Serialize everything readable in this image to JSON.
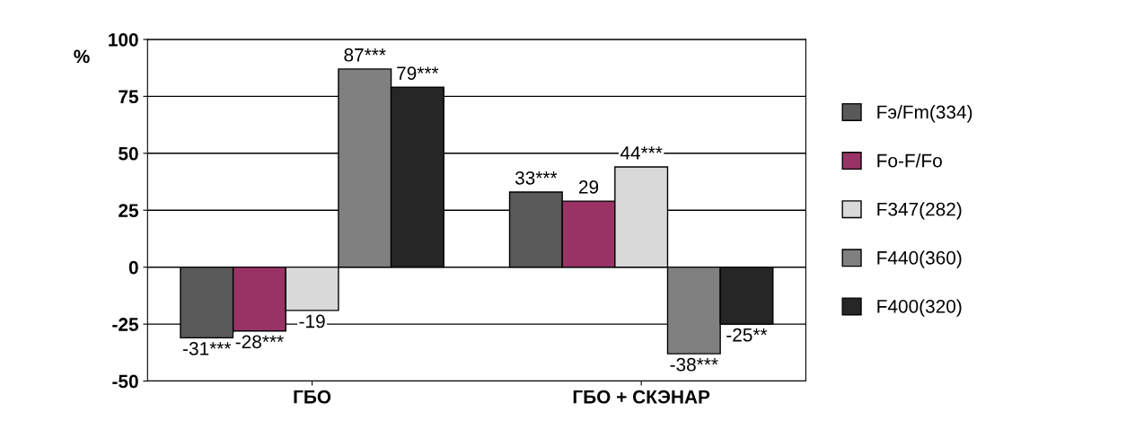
{
  "chart_data": {
    "type": "bar",
    "ylabel": "%",
    "categories": [
      "ГБО",
      "ГБО + СКЭНАР"
    ],
    "series": [
      {
        "name": "Fэ/Fm(334)",
        "color": "#595959",
        "values": [
          -31,
          33
        ],
        "value_labels": [
          "-31***",
          "33***"
        ]
      },
      {
        "name": "Fo-F/Fo",
        "color": "#993366",
        "values": [
          -28,
          29
        ],
        "value_labels": [
          "-28***",
          "29"
        ]
      },
      {
        "name": "F347(282)",
        "color": "#d9d9d9",
        "values": [
          -19,
          44
        ],
        "value_labels": [
          "-19",
          "44***"
        ]
      },
      {
        "name": "F440(360)",
        "color": "#808080",
        "values": [
          87,
          -38
        ],
        "value_labels": [
          "87***",
          "-38***"
        ]
      },
      {
        "name": "F400(320)",
        "color": "#262626",
        "values": [
          79,
          -25
        ],
        "value_labels": [
          "79***",
          "-25**"
        ]
      }
    ],
    "ylim": [
      -50,
      100
    ],
    "yticks": [
      -50,
      -25,
      0,
      25,
      50,
      75,
      100
    ],
    "grid": "y",
    "legend": "right"
  }
}
